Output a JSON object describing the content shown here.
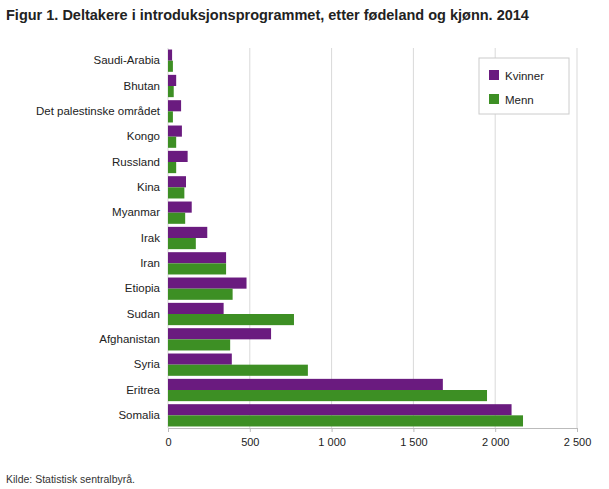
{
  "chart_data": {
    "type": "bar",
    "orientation": "horizontal",
    "title": "Figur 1. Deltakere i introduksjonsprogrammet, etter fødeland og kjønn. 2014",
    "source": "Kilde: Statistisk sentralbyrå.",
    "categories": [
      "Saudi-Arabia",
      "Bhutan",
      "Det palestinske området",
      "Kongo",
      "Russland",
      "Kina",
      "Myanmar",
      "Irak",
      "Iran",
      "Etiopia",
      "Sudan",
      "Afghanistan",
      "Syria",
      "Eritrea",
      "Somalia"
    ],
    "series": [
      {
        "name": "Kvinner",
        "color": "#6a1b7f",
        "values": [
          25,
          50,
          80,
          85,
          120,
          110,
          145,
          240,
          355,
          480,
          340,
          630,
          390,
          1680,
          2100
        ]
      },
      {
        "name": "Menn",
        "color": "#3d8f24",
        "values": [
          30,
          35,
          30,
          50,
          50,
          100,
          105,
          170,
          355,
          395,
          770,
          380,
          855,
          1950,
          2170
        ]
      }
    ],
    "xlim": [
      0,
      2500
    ],
    "xticks": [
      0,
      500,
      {
        "value": 1000,
        "label": "1 000"
      },
      {
        "value": 1500,
        "label": "1 500"
      },
      {
        "value": 2000,
        "label": "2 000"
      },
      {
        "value": 2500,
        "label": "2 500"
      }
    ],
    "grid": true,
    "legend": "top-right"
  }
}
